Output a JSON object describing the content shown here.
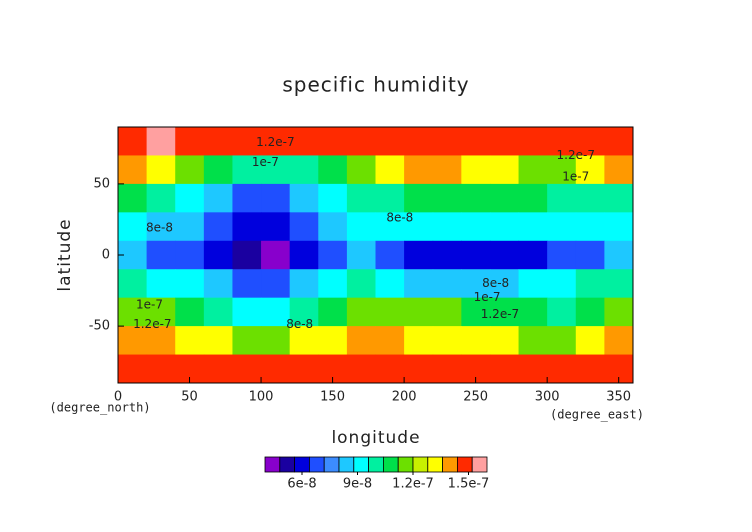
{
  "chart_data": {
    "type": "contour",
    "title": "specific humidity",
    "x_label": "longitude",
    "y_label": "latitude",
    "x_unit": "(degree_east)",
    "y_unit": "(degree_north)",
    "x": [
      10,
      30,
      50,
      70,
      90,
      110,
      130,
      150,
      170,
      190,
      210,
      230,
      250,
      270,
      290,
      310,
      330,
      350
    ],
    "y": [
      80,
      60,
      40,
      20,
      0,
      -20,
      -40,
      -60,
      -80
    ],
    "z": [
      [
        1.5e-07,
        1.6e-07,
        1.5e-07,
        1.5e-07,
        1.5e-07,
        1.5e-07,
        1.5e-07,
        1.5e-07,
        1.5e-07,
        1.5e-07,
        1.5e-07,
        1.5e-07,
        1.5e-07,
        1.5e-07,
        1.5e-07,
        1.5e-07,
        1.5e-07,
        1.5e-07
      ],
      [
        1.4e-07,
        1.3e-07,
        1.2e-07,
        1.1e-07,
        1e-07,
        1e-07,
        1e-07,
        1.1e-07,
        1.2e-07,
        1.3e-07,
        1.4e-07,
        1.4e-07,
        1.3e-07,
        1.3e-07,
        1.2e-07,
        1.2e-07,
        1.3e-07,
        1.4e-07
      ],
      [
        1.1e-07,
        1e-07,
        9e-08,
        8e-08,
        7e-08,
        7e-08,
        8e-08,
        9e-08,
        1e-07,
        1e-07,
        1.1e-07,
        1.1e-07,
        1.1e-07,
        1.1e-07,
        1.1e-07,
        1e-07,
        1e-07,
        1e-07
      ],
      [
        9e-08,
        8e-08,
        8e-08,
        7e-08,
        6e-08,
        6e-08,
        7e-08,
        8e-08,
        9e-08,
        9e-08,
        9e-08,
        9e-08,
        9e-08,
        9e-08,
        9e-08,
        9e-08,
        9e-08,
        9e-08
      ],
      [
        8e-08,
        7e-08,
        7e-08,
        6e-08,
        5e-08,
        4e-08,
        6e-08,
        7e-08,
        8e-08,
        7e-08,
        6e-08,
        6e-08,
        6e-08,
        6e-08,
        6e-08,
        7e-08,
        7e-08,
        8e-08
      ],
      [
        1e-07,
        9e-08,
        9e-08,
        8e-08,
        7e-08,
        7e-08,
        8e-08,
        9e-08,
        1e-07,
        9e-08,
        8e-08,
        8e-08,
        8e-08,
        8e-08,
        9e-08,
        9e-08,
        1e-07,
        1e-07
      ],
      [
        1.2e-07,
        1.2e-07,
        1.1e-07,
        1e-07,
        9e-08,
        9e-08,
        1e-07,
        1.1e-07,
        1.2e-07,
        1.2e-07,
        1.2e-07,
        1.2e-07,
        1.1e-07,
        1.1e-07,
        1.1e-07,
        1e-07,
        1.1e-07,
        1.2e-07
      ],
      [
        1.4e-07,
        1.4e-07,
        1.3e-07,
        1.3e-07,
        1.2e-07,
        1.2e-07,
        1.3e-07,
        1.3e-07,
        1.4e-07,
        1.4e-07,
        1.3e-07,
        1.3e-07,
        1.3e-07,
        1.3e-07,
        1.2e-07,
        1.2e-07,
        1.3e-07,
        1.4e-07
      ],
      [
        1.5e-07,
        1.5e-07,
        1.5e-07,
        1.5e-07,
        1.5e-07,
        1.5e-07,
        1.5e-07,
        1.5e-07,
        1.5e-07,
        1.5e-07,
        1.5e-07,
        1.5e-07,
        1.5e-07,
        1.5e-07,
        1.5e-07,
        1.5e-07,
        1.5e-07,
        1.5e-07
      ]
    ],
    "xlim": [
      0,
      360
    ],
    "ylim": [
      -90,
      90
    ],
    "xticks": [
      0,
      50,
      100,
      150,
      200,
      250,
      300,
      350
    ],
    "yticks": [
      -50,
      0,
      50
    ],
    "colors": [
      "#8800cc",
      "#1a00a0",
      "#0000dd",
      "#1f4fff",
      "#3c8cff",
      "#1ec8ff",
      "#00ffff",
      "#00f0a0",
      "#00e04a",
      "#6ce000",
      "#c8f000",
      "#ffff00",
      "#ff9900",
      "#ff2a00",
      "#ffa0a0"
    ],
    "clim": [
      4e-08,
      1.6e-07
    ],
    "cticks": [
      {
        "value": 6e-08,
        "label": "6e-8"
      },
      {
        "value": 9e-08,
        "label": "9e-8"
      },
      {
        "value": 1.2e-07,
        "label": "1.2e-7"
      },
      {
        "value": 1.5e-07,
        "label": "1.5e-7"
      }
    ],
    "annotations": [
      {
        "text": "1.2e-7",
        "x": 110,
        "y": 79
      },
      {
        "text": "1e-7",
        "x": 103,
        "y": 65
      },
      {
        "text": "8e-8",
        "x": 29,
        "y": 19
      },
      {
        "text": "8e-8",
        "x": 197,
        "y": 26
      },
      {
        "text": "8e-8",
        "x": 127,
        "y": -49
      },
      {
        "text": "8e-8",
        "x": 264,
        "y": -20
      },
      {
        "text": "1e-7",
        "x": 258,
        "y": -30
      },
      {
        "text": "1.2e-7",
        "x": 267,
        "y": -42
      },
      {
        "text": "1.2e-7",
        "x": 320,
        "y": 70
      },
      {
        "text": "1e-7",
        "x": 320,
        "y": 55
      },
      {
        "text": "1e-7",
        "x": 22,
        "y": -35
      },
      {
        "text": "1.2e-7",
        "x": 24,
        "y": -49
      }
    ]
  }
}
